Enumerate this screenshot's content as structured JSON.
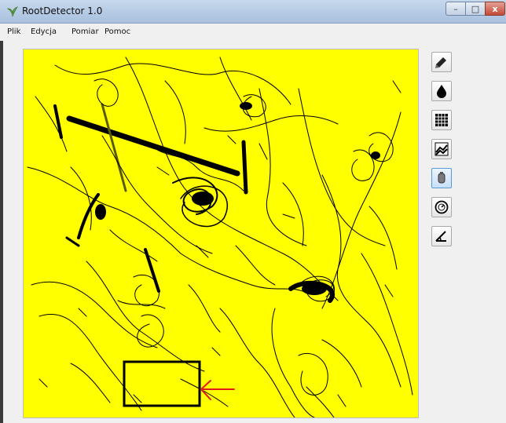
{
  "window": {
    "title": "RootDetector 1.0",
    "minimize_glyph": "–",
    "maximize_glyph": "□",
    "close_glyph": "x"
  },
  "menu": {
    "items": [
      "Plik",
      "Edycja",
      "Pomiar",
      "Pomoc"
    ]
  },
  "canvas": {
    "background_color": "#ffff00",
    "root_color": "#000000",
    "selection_rect_color": "#000000",
    "annotation_arrow_color": "#e01b1b"
  },
  "tools": [
    {
      "icon": "pencil-icon",
      "active": false
    },
    {
      "icon": "drop-icon",
      "active": false
    },
    {
      "icon": "grid-icon",
      "active": false
    },
    {
      "icon": "chart-icon",
      "active": false
    },
    {
      "icon": "cylinder-icon",
      "active": true
    },
    {
      "icon": "gauge-icon",
      "active": false
    },
    {
      "icon": "angle-icon",
      "active": false
    }
  ]
}
